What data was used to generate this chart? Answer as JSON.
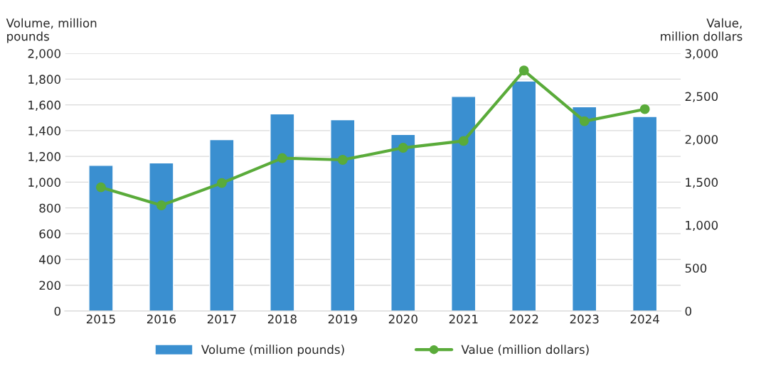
{
  "chart_data": {
    "type": "bar",
    "xlabel": null,
    "ylabel": "Volume, million\npounds",
    "y2label": "Value,\nmillion dollars",
    "categories": [
      "2015",
      "2016",
      "2017",
      "2018",
      "2019",
      "2020",
      "2021",
      "2022",
      "2023",
      "2024"
    ],
    "series": [
      {
        "name": "Volume (million pounds)",
        "color": "#3a8fd0",
        "values": [
          1130,
          1150,
          1330,
          1530,
          1485,
          1370,
          1665,
          1785,
          1585,
          1510
        ]
      },
      {
        "name": "Value (million dollars)",
        "type": "line",
        "axis": "y2",
        "color": "#5aab3a",
        "marker": "circle",
        "values": [
          1440,
          1230,
          1490,
          1780,
          1760,
          1900,
          1980,
          2800,
          2210,
          2350
        ]
      }
    ],
    "ylim": [
      0,
      2000
    ],
    "yticks": [
      0,
      200,
      400,
      600,
      800,
      {
        "value": 1000,
        "label": "1,000"
      },
      {
        "value": 1200,
        "label": "1,200"
      },
      {
        "value": 1400,
        "label": "1,400"
      },
      {
        "value": 1600,
        "label": "1,600"
      },
      {
        "value": 1800,
        "label": "1,800"
      },
      {
        "value": 2000,
        "label": "2,000"
      }
    ],
    "y2lim": [
      0,
      3000
    ],
    "y2ticks": [
      0,
      500,
      {
        "value": 1000,
        "label": "1,000"
      },
      {
        "value": 1500,
        "label": "1,500"
      },
      {
        "value": 2000,
        "label": "2,000"
      },
      {
        "value": 2500,
        "label": "2,500"
      },
      {
        "value": 3000,
        "label": "3,000"
      }
    ],
    "grid": "y",
    "legend": "bottom"
  }
}
